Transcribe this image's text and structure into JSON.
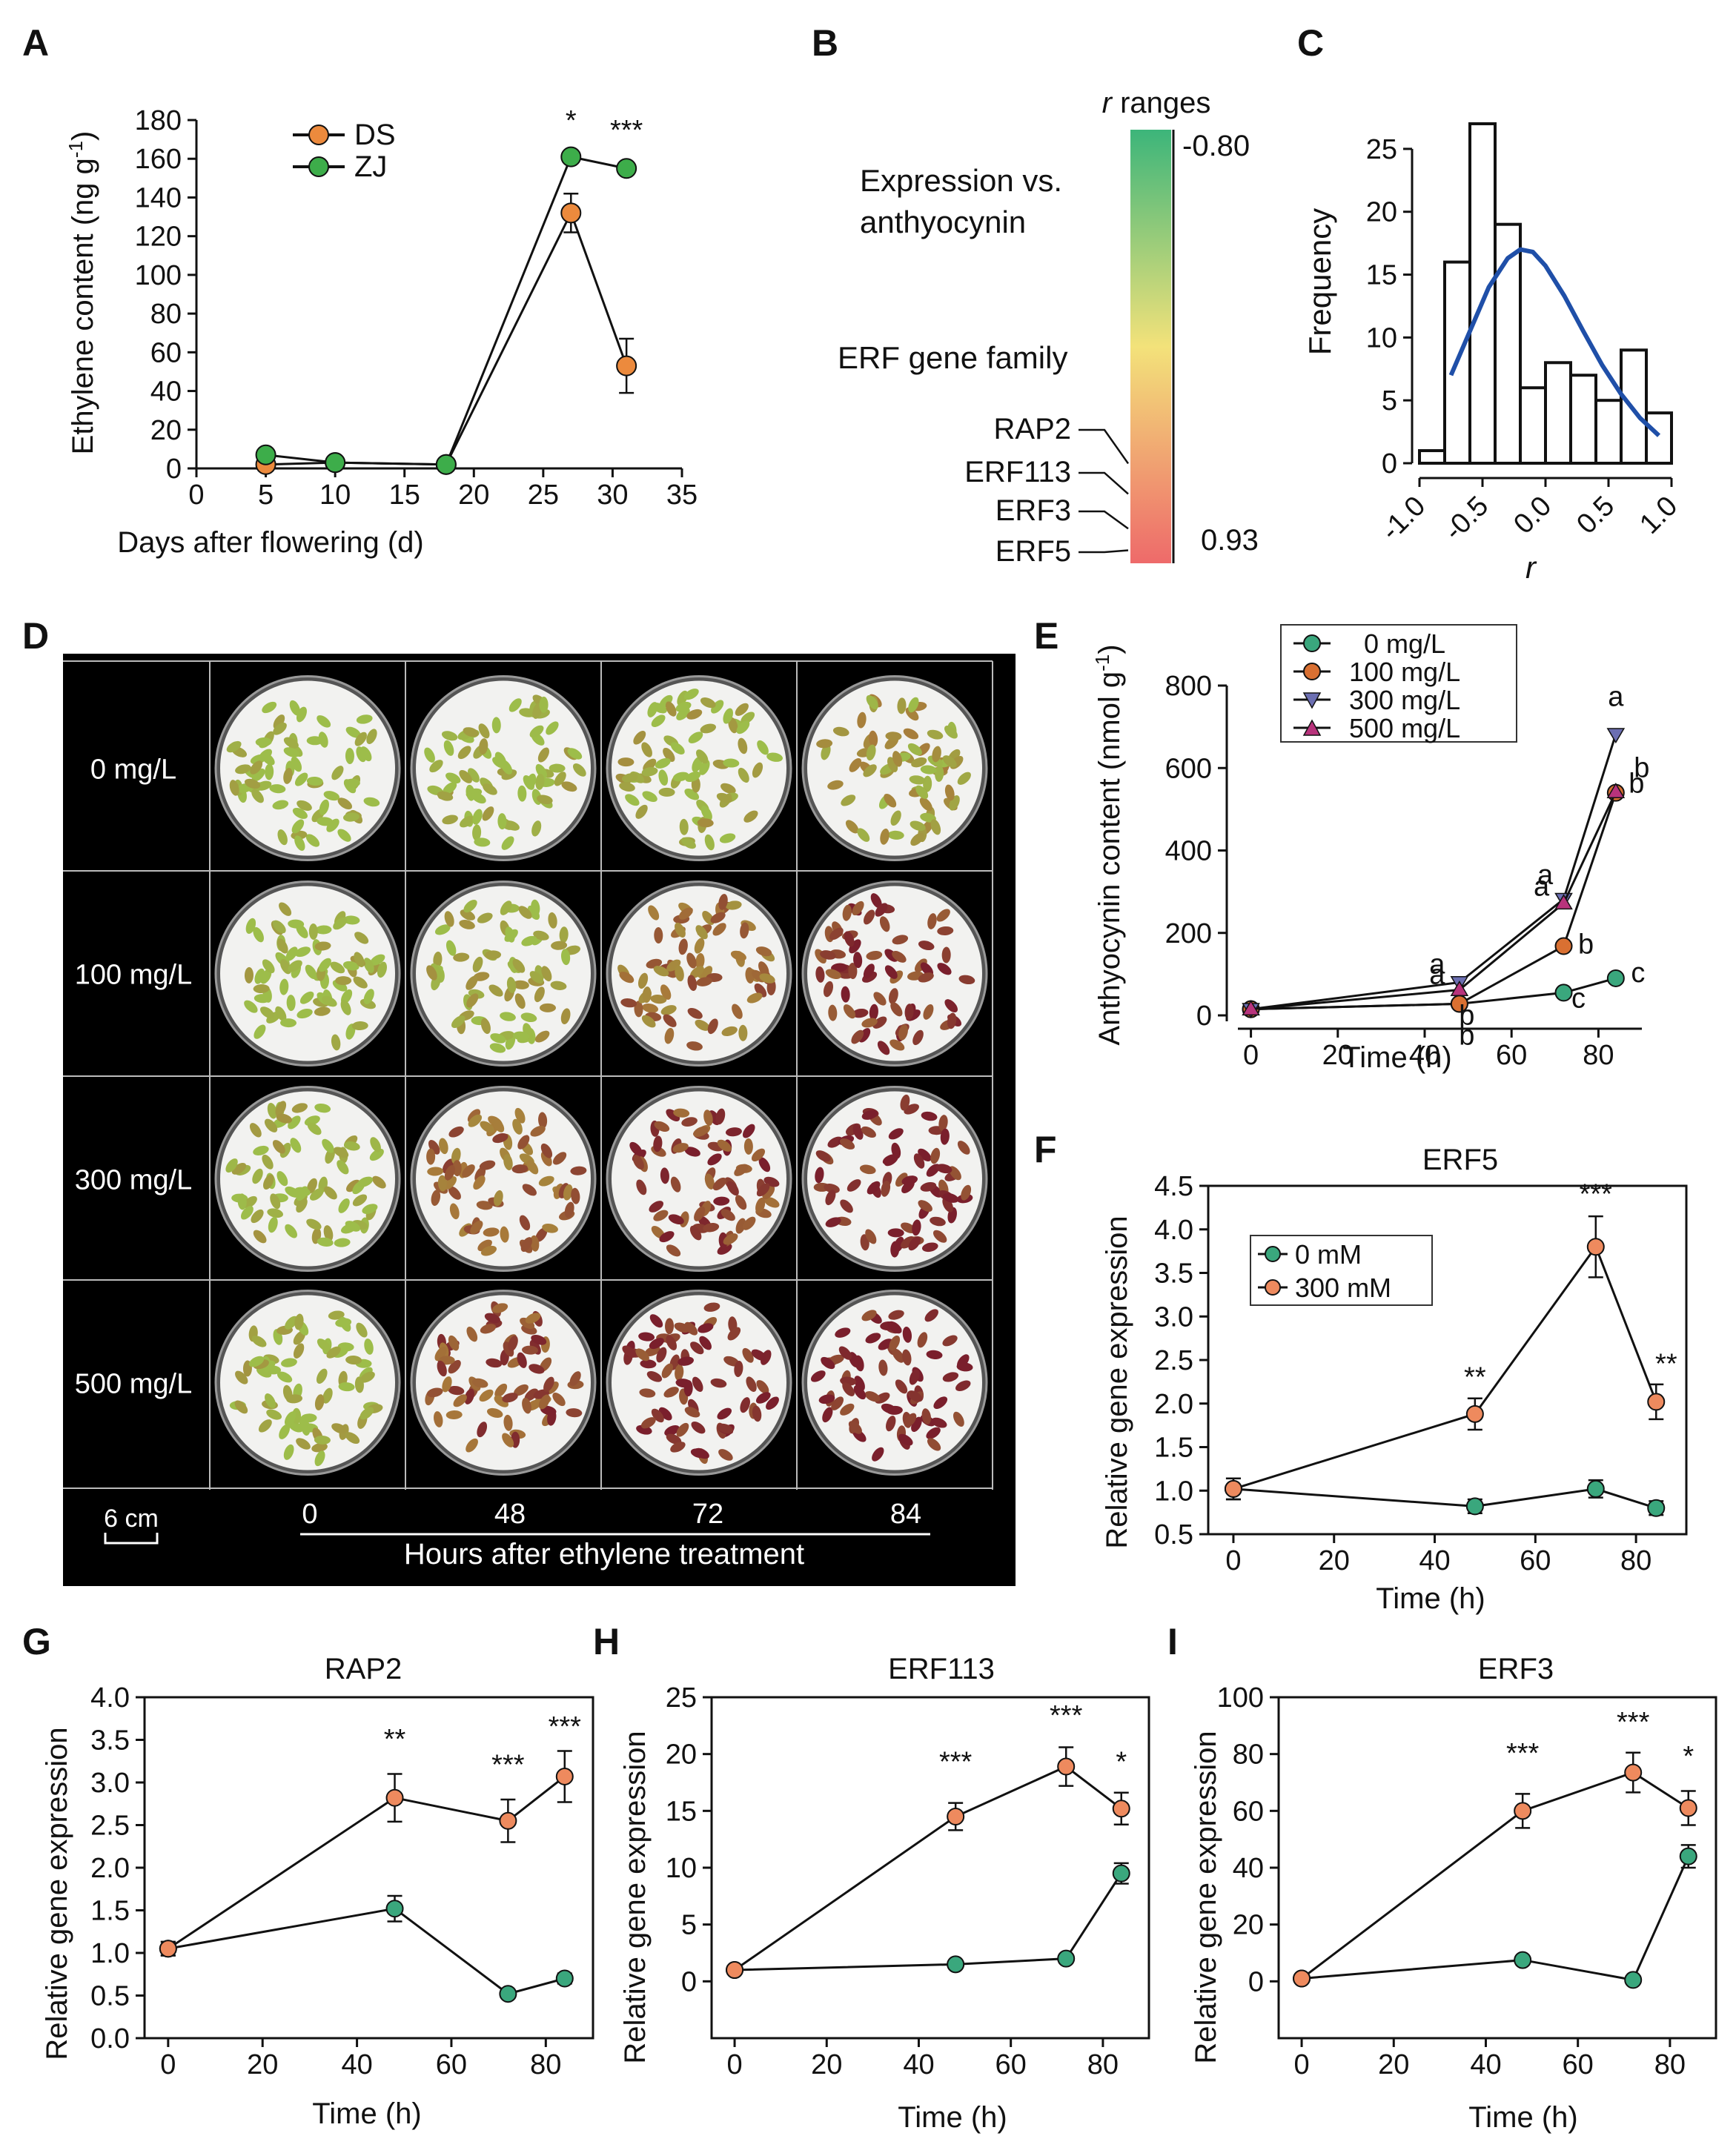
{
  "figure": {
    "panel_letters": [
      "A",
      "B",
      "C",
      "D",
      "E",
      "F",
      "G",
      "H",
      "I"
    ]
  },
  "colors": {
    "orange": "#ec8a3d",
    "green": "#3dad4a",
    "teal": "#3aa77d",
    "salmon": "#ee8a5e",
    "navy_marker": "#6c6fb2",
    "magenta_marker": "#b8337c",
    "fit_curve": "#1f4fa8",
    "gradient_top": "#3cb57a",
    "gradient_mid": "#f3e27a",
    "gradient_bottom": "#ee6a6a",
    "photo_background": "#000000"
  },
  "chart_data": [
    {
      "panel": "A",
      "type": "line",
      "title": "",
      "xlabel": "Days after flowering (d)",
      "ylabel": "Ethylene content (ng g-1)",
      "ylabel_parts": {
        "main": "Ethylene content (ng g",
        "sup": "-1",
        "close": ")"
      },
      "xlim": [
        0,
        35
      ],
      "ylim": [
        0,
        180
      ],
      "xticks": [
        0,
        5,
        10,
        15,
        20,
        25,
        30,
        35
      ],
      "yticks": [
        0,
        20,
        40,
        60,
        80,
        100,
        120,
        140,
        160,
        180
      ],
      "series": [
        {
          "name": "DS",
          "color": "#ec8a3d",
          "x": [
            5,
            10,
            18,
            27,
            31
          ],
          "values": [
            2,
            3,
            2,
            132,
            53
          ],
          "errors": [
            0,
            0,
            0,
            10,
            14
          ]
        },
        {
          "name": "ZJ",
          "color": "#3dad4a",
          "x": [
            5,
            10,
            18,
            27,
            31
          ],
          "values": [
            7,
            3,
            2,
            161,
            155
          ],
          "errors": [
            0,
            0,
            0,
            0,
            0
          ]
        }
      ],
      "annotations": [
        {
          "x": 27,
          "y": 175,
          "text": "*"
        },
        {
          "x": 31,
          "y": 170,
          "text": "***"
        }
      ]
    },
    {
      "panel": "B",
      "type": "heatmap",
      "title": "r ranges",
      "title_italic": "r",
      "title_rest": " ranges",
      "top_value": "-0.80",
      "bottom_value": "0.93",
      "text_lines": [
        "Expression vs.",
        "anthyocynin",
        "ERF gene family"
      ],
      "genes": [
        "RAP2",
        "ERF113",
        "ERF3",
        "ERF5"
      ],
      "gene_positions": [
        0.77,
        0.84,
        0.92,
        0.97
      ]
    },
    {
      "panel": "C",
      "type": "bar",
      "title": "",
      "xlabel": "r",
      "ylabel": "Frequency",
      "xlim": [
        -1.0,
        1.0
      ],
      "ylim": [
        0,
        28
      ],
      "xticks": [
        "-1.0",
        "-0.5",
        "0.0",
        "0.5",
        "1.0"
      ],
      "yticks": [
        0,
        5,
        10,
        15,
        20,
        25
      ],
      "bin_edges": [
        -0.9,
        -0.7,
        -0.5,
        -0.3,
        -0.1,
        0.1,
        0.3,
        0.5,
        0.7,
        0.9
      ],
      "bin_width": 0.2,
      "values": [
        1,
        16,
        27,
        19,
        6,
        8,
        7,
        5,
        9,
        4
      ],
      "fit_curve": {
        "x": [
          -0.75,
          -0.6,
          -0.45,
          -0.3,
          -0.2,
          -0.1,
          0.0,
          0.15,
          0.3,
          0.45,
          0.6,
          0.75,
          0.9
        ],
        "values": [
          7,
          10.5,
          14,
          16.3,
          17,
          16.8,
          15.7,
          13.3,
          10.5,
          7.8,
          5.5,
          3.6,
          2.2
        ]
      }
    },
    {
      "panel": "E",
      "type": "line",
      "title": "",
      "xlabel": "Time (h)",
      "ylabel": "Anthyocynin content (nmol g-1)",
      "ylabel_parts": {
        "main": "Anthyocynin content (nmol g",
        "sup": "-1",
        "close": ")"
      },
      "xlim": [
        -3,
        90
      ],
      "ylim": [
        -20,
        810
      ],
      "xticks": [
        0,
        20,
        40,
        60,
        80
      ],
      "yticks": [
        0,
        200,
        400,
        600,
        800
      ],
      "series": [
        {
          "name": "0 mg/L",
          "color": "#3aa77d",
          "marker": "circle",
          "x": [
            0,
            48,
            72,
            84
          ],
          "values": [
            15,
            28,
            55,
            90
          ],
          "letters": [
            "",
            "b",
            "c",
            "c"
          ]
        },
        {
          "name": "100 mg/L",
          "color": "#d97032",
          "marker": "circle",
          "x": [
            0,
            48,
            72,
            84
          ],
          "values": [
            15,
            28,
            168,
            540
          ],
          "letters": [
            "",
            "b",
            "b",
            "b"
          ]
        },
        {
          "name": "300 mg/L",
          "color": "#6c6fb2",
          "marker": "triangle-down",
          "x": [
            0,
            48,
            72,
            84
          ],
          "values": [
            15,
            80,
            282,
            682
          ],
          "letters": [
            "",
            "a",
            "a",
            "a"
          ]
        },
        {
          "name": "500 mg/L",
          "color": "#b8337c",
          "marker": "triangle-up",
          "x": [
            0,
            48,
            72,
            84
          ],
          "values": [
            15,
            62,
            272,
            542
          ],
          "letters": [
            "",
            "a",
            "a",
            "b"
          ]
        }
      ]
    },
    {
      "panel": "F",
      "type": "line",
      "title": "ERF5",
      "xlabel": "Time (h)",
      "ylabel": "Relative gene expression",
      "xlim": [
        -5,
        90
      ],
      "ylim": [
        0.5,
        4.5
      ],
      "xticks": [
        0,
        20,
        40,
        60,
        80
      ],
      "yticks": [
        "0.5",
        "1.0",
        "1.5",
        "2.0",
        "2.5",
        "3.0",
        "3.5",
        "4.0",
        "4.5"
      ],
      "legend": [
        "0 mM",
        "300 mM"
      ],
      "series": [
        {
          "name": "0 mM",
          "color": "#3aa77d",
          "x": [
            0,
            48,
            72,
            84
          ],
          "values": [
            1.02,
            0.82,
            1.02,
            0.8
          ],
          "errors": [
            0.12,
            0.08,
            0.1,
            0.08
          ]
        },
        {
          "name": "300 mM",
          "color": "#ee8a5e",
          "x": [
            0,
            48,
            72,
            84
          ],
          "values": [
            1.02,
            1.88,
            3.8,
            2.02
          ],
          "errors": [
            0.12,
            0.18,
            0.35,
            0.2
          ]
        }
      ],
      "annotations": [
        {
          "x": 48,
          "y": 2.2,
          "text": "**"
        },
        {
          "x": 72,
          "y": 4.3,
          "text": "***"
        },
        {
          "x": 86,
          "y": 2.35,
          "text": "**"
        }
      ]
    },
    {
      "panel": "G",
      "type": "line",
      "title": "RAP2",
      "xlabel": "Time (h)",
      "ylabel": "Relative gene expression",
      "xlim": [
        -5,
        90
      ],
      "ylim": [
        0,
        4.0
      ],
      "xticks": [
        0,
        20,
        40,
        60,
        80
      ],
      "yticks": [
        "0.0",
        "0.5",
        "1.0",
        "1.5",
        "2.0",
        "2.5",
        "3.0",
        "3.5",
        "4.0"
      ],
      "series": [
        {
          "name": "0 mM",
          "color": "#3aa77d",
          "x": [
            0,
            48,
            72,
            84
          ],
          "values": [
            1.05,
            1.52,
            0.52,
            0.7
          ],
          "errors": [
            0.08,
            0.15,
            0.04,
            0.06
          ]
        },
        {
          "name": "300 mM",
          "color": "#ee8a5e",
          "x": [
            0,
            48,
            72,
            84
          ],
          "values": [
            1.05,
            2.82,
            2.55,
            3.07
          ],
          "errors": [
            0.08,
            0.28,
            0.25,
            0.3
          ]
        }
      ],
      "annotations": [
        {
          "x": 48,
          "y": 3.4,
          "text": "**"
        },
        {
          "x": 72,
          "y": 3.1,
          "text": "***"
        },
        {
          "x": 84,
          "y": 3.55,
          "text": "***"
        }
      ]
    },
    {
      "panel": "H",
      "type": "line",
      "title": "ERF113",
      "xlabel": "Time (h)",
      "ylabel": "Relative gene expression",
      "xlim": [
        -5,
        90
      ],
      "ylim": [
        -5,
        25
      ],
      "xticks": [
        0,
        20,
        40,
        60,
        80
      ],
      "yticks": [
        0,
        5,
        10,
        15,
        20,
        25
      ],
      "series": [
        {
          "name": "0 mM",
          "color": "#3aa77d",
          "x": [
            0,
            48,
            72,
            84
          ],
          "values": [
            1,
            1.5,
            2,
            9.5
          ],
          "errors": [
            0.1,
            0.1,
            0.2,
            0.9
          ]
        },
        {
          "name": "300 mM",
          "color": "#ee8a5e",
          "x": [
            0,
            48,
            72,
            84
          ],
          "values": [
            1,
            14.5,
            18.9,
            15.2
          ],
          "errors": [
            0.1,
            1.2,
            1.7,
            1.4
          ]
        }
      ],
      "annotations": [
        {
          "x": 48,
          "y": 18.5,
          "text": "***"
        },
        {
          "x": 72,
          "y": 22.6,
          "text": "***"
        },
        {
          "x": 84,
          "y": 18.5,
          "text": "*"
        }
      ]
    },
    {
      "panel": "I",
      "type": "line",
      "title": "ERF3",
      "xlabel": "Time (h)",
      "ylabel": "Relative gene expression",
      "xlim": [
        -5,
        90
      ],
      "ylim": [
        -20,
        100
      ],
      "xticks": [
        0,
        20,
        40,
        60,
        80
      ],
      "yticks": [
        0,
        20,
        40,
        60,
        80,
        100
      ],
      "series": [
        {
          "name": "0 mM",
          "color": "#3aa77d",
          "x": [
            0,
            48,
            72,
            84
          ],
          "values": [
            1,
            7.5,
            0.5,
            44
          ],
          "errors": [
            0.2,
            0.5,
            0.2,
            4
          ]
        },
        {
          "name": "300 mM",
          "color": "#ee8a5e",
          "x": [
            0,
            48,
            72,
            84
          ],
          "values": [
            1,
            60,
            73.5,
            61
          ],
          "errors": [
            0.2,
            6,
            7,
            6
          ]
        }
      ],
      "annotations": [
        {
          "x": 48,
          "y": 77,
          "text": "***"
        },
        {
          "x": 72,
          "y": 88,
          "text": "***"
        },
        {
          "x": 84,
          "y": 76,
          "text": "*"
        }
      ]
    }
  ],
  "photo_panel": {
    "panel": "D",
    "row_labels": [
      "0 mg/L",
      "100 mg/L",
      "300 mg/L",
      "500 mg/L"
    ],
    "col_labels": [
      "0",
      "48",
      "72",
      "84"
    ],
    "footer_label": "Hours after ethylene treatment",
    "scale_label": "6 cm",
    "ripeness": [
      [
        0.03,
        0.07,
        0.12,
        0.25
      ],
      [
        0.05,
        0.15,
        0.55,
        0.85
      ],
      [
        0.08,
        0.6,
        0.8,
        0.92
      ],
      [
        0.06,
        0.75,
        0.9,
        0.95
      ]
    ]
  }
}
